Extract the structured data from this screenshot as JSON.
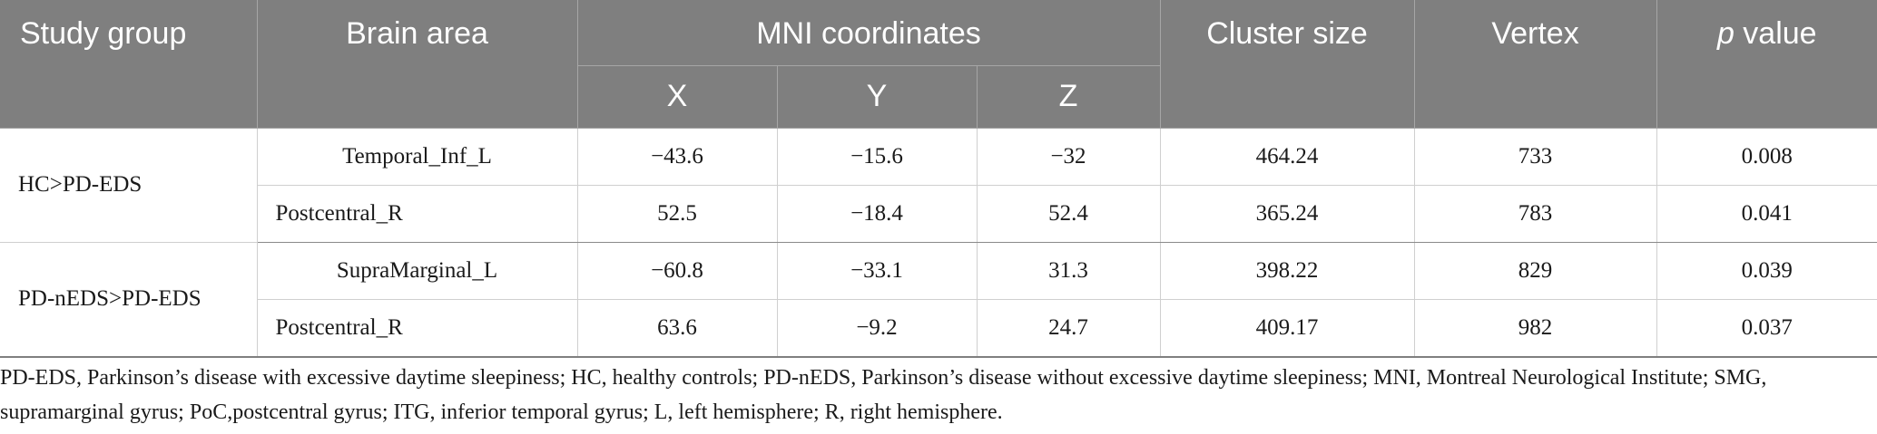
{
  "table": {
    "headers": {
      "study_group": "Study group",
      "brain_area": "Brain area",
      "mni": "MNI coordinates",
      "x": "X",
      "y": "Y",
      "z": "Z",
      "cluster_size": "Cluster size",
      "vertex": "Vertex",
      "p_italic": "p",
      "p_rest": " value"
    },
    "groups": [
      {
        "name": "HC>PD-EDS",
        "rows": [
          {
            "area": "Temporal_Inf_L",
            "x": "−43.6",
            "y": "−15.6",
            "z": "−32",
            "cluster": "464.24",
            "vertex": "733",
            "p": "0.008"
          },
          {
            "area": "Postcentral_R",
            "x": "52.5",
            "y": "−18.4",
            "z": "52.4",
            "cluster": "365.24",
            "vertex": "783",
            "p": "0.041"
          }
        ]
      },
      {
        "name": "PD-nEDS>PD-EDS",
        "rows": [
          {
            "area": "SupraMarginal_L",
            "x": "−60.8",
            "y": "−33.1",
            "z": "31.3",
            "cluster": "398.22",
            "vertex": "829",
            "p": "0.039"
          },
          {
            "area": "Postcentral_R",
            "x": "63.6",
            "y": "−9.2",
            "z": "24.7",
            "cluster": "409.17",
            "vertex": "982",
            "p": "0.037"
          }
        ]
      }
    ]
  },
  "footnote": "PD-EDS, Parkinson’s disease with excessive daytime sleepiness; HC, healthy controls; PD-nEDS, Parkinson’s disease without excessive daytime sleepiness; MNI, Montreal Neurological Institute; SMG, supramarginal gyrus; PoC,postcentral gyrus; ITG, inferior temporal gyrus; L, left hemisphere; R, right hemisphere."
}
